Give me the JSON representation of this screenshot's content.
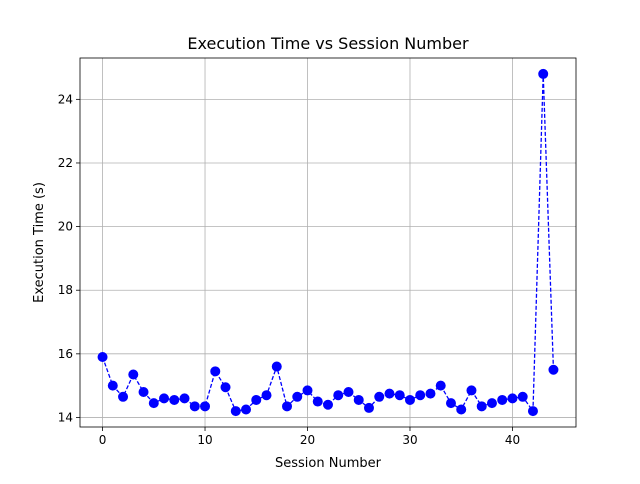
{
  "chart_data": {
    "type": "line",
    "title": "Execution Time vs Session Number",
    "xlabel": "Session Number",
    "ylabel": "Execution Time (s)",
    "xlim": [
      -2.2,
      46.2
    ],
    "ylim": [
      13.7,
      25.3
    ],
    "xticks": [
      0,
      10,
      20,
      30,
      40
    ],
    "yticks": [
      14,
      16,
      18,
      20,
      22,
      24
    ],
    "grid": true,
    "series": [
      {
        "color": "#0000ff",
        "line_style": "dashed",
        "marker": "circle",
        "x": [
          0,
          1,
          2,
          3,
          4,
          5,
          6,
          7,
          8,
          9,
          10,
          11,
          12,
          13,
          14,
          15,
          16,
          17,
          18,
          19,
          20,
          21,
          22,
          23,
          24,
          25,
          26,
          27,
          28,
          29,
          30,
          31,
          32,
          33,
          34,
          35,
          36,
          37,
          38,
          39,
          40,
          41,
          42,
          43,
          44
        ],
        "y": [
          15.9,
          15.0,
          14.65,
          15.35,
          14.8,
          14.45,
          14.6,
          14.55,
          14.6,
          14.35,
          14.35,
          15.45,
          14.95,
          14.2,
          14.25,
          14.55,
          14.7,
          15.6,
          14.35,
          14.65,
          14.85,
          14.5,
          14.4,
          14.7,
          14.8,
          14.55,
          14.3,
          14.65,
          14.75,
          14.7,
          14.55,
          14.7,
          14.75,
          15.0,
          14.45,
          14.25,
          14.85,
          14.35,
          14.45,
          14.55,
          14.6,
          14.65,
          14.2,
          24.8,
          15.5
        ]
      }
    ]
  }
}
